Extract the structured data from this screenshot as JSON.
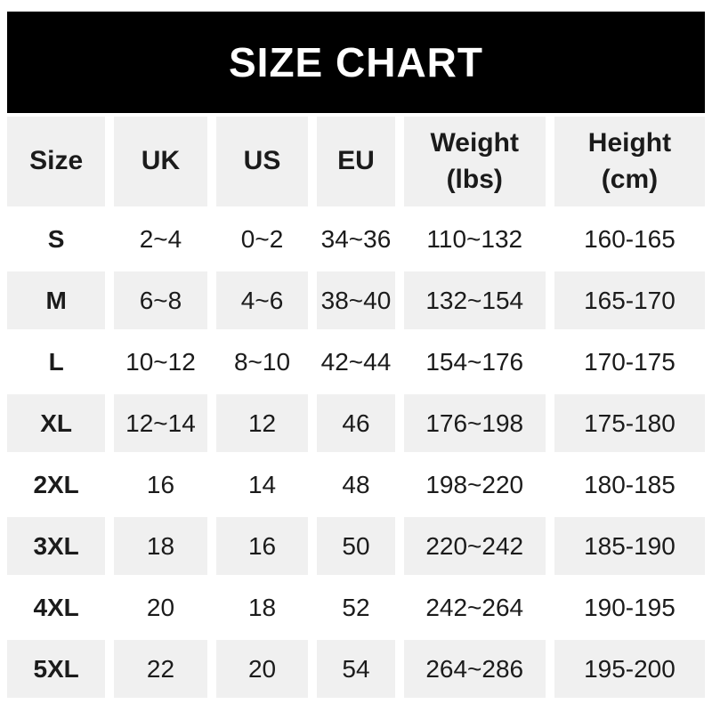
{
  "title": "SIZE CHART",
  "colors": {
    "title_bar_bg": "#000000",
    "title_bar_text": "#ffffff",
    "row_alt_bg": "#f0f0f0",
    "row_bg": "#ffffff",
    "text": "#1b1b1b"
  },
  "chart_data": {
    "type": "table",
    "title": "SIZE CHART",
    "headers": [
      "Size",
      "UK",
      "US",
      "EU",
      "Weight\n(lbs)",
      "Height\n(cm)"
    ],
    "rows": [
      {
        "size": "S",
        "uk": "2~4",
        "us": "0~2",
        "eu": "34~36",
        "weight": "110~132",
        "height": "160-165"
      },
      {
        "size": "M",
        "uk": "6~8",
        "us": "4~6",
        "eu": "38~40",
        "weight": "132~154",
        "height": "165-170"
      },
      {
        "size": "L",
        "uk": "10~12",
        "us": "8~10",
        "eu": "42~44",
        "weight": "154~176",
        "height": "170-175"
      },
      {
        "size": "XL",
        "uk": "12~14",
        "us": "12",
        "eu": "46",
        "weight": "176~198",
        "height": "175-180"
      },
      {
        "size": "2XL",
        "uk": "16",
        "us": "14",
        "eu": "48",
        "weight": "198~220",
        "height": "180-185"
      },
      {
        "size": "3XL",
        "uk": "18",
        "us": "16",
        "eu": "50",
        "weight": "220~242",
        "height": "185-190"
      },
      {
        "size": "4XL",
        "uk": "20",
        "us": "18",
        "eu": "52",
        "weight": "242~264",
        "height": "190-195"
      },
      {
        "size": "5XL",
        "uk": "22",
        "us": "20",
        "eu": "54",
        "weight": "264~286",
        "height": "195-200"
      }
    ]
  }
}
